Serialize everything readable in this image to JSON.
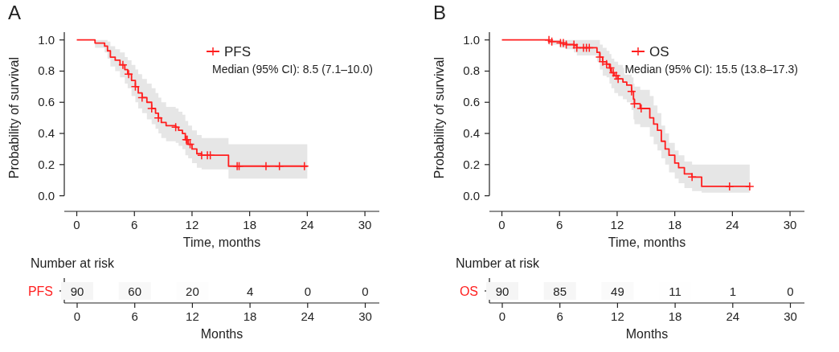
{
  "chart_data": [
    {
      "type": "step",
      "title": "A",
      "xlabel": "Time, months",
      "ylabel": "Probability of survival",
      "xlim": [
        -1.3,
        31.5
      ],
      "ylim": [
        -0.1,
        1.05
      ],
      "xticks": [
        0,
        6,
        12,
        18,
        24,
        30
      ],
      "yticks": [
        {
          "value": 0,
          "label": "0.0"
        },
        {
          "value": 0.2,
          "label": "0.2"
        },
        {
          "value": 0.4,
          "label": "0.4"
        },
        {
          "value": 0.6,
          "label": "0.6"
        },
        {
          "value": 0.8,
          "label": "0.8"
        },
        {
          "value": 1,
          "label": "1.0"
        }
      ],
      "legend": "top right",
      "annotations": [
        "Median (95% CI): 8.5 (7.1–10.0)"
      ],
      "series": [
        {
          "name": "PFS",
          "type": "step",
          "color": "#ff1f1f",
          "x": [
            0,
            1.9,
            2.9,
            3.2,
            3.5,
            4.0,
            4.5,
            5.0,
            5.3,
            5.7,
            6.1,
            6.4,
            6.8,
            7.3,
            7.8,
            8.2,
            8.5,
            8.8,
            9.3,
            10.3,
            10.6,
            11.0,
            11.3,
            11.6,
            12.0,
            12.5,
            13.0,
            15.8,
            24
          ],
          "values": [
            1,
            0.98,
            0.96,
            0.93,
            0.89,
            0.87,
            0.84,
            0.81,
            0.78,
            0.74,
            0.7,
            0.66,
            0.63,
            0.6,
            0.56,
            0.53,
            0.5,
            0.47,
            0.45,
            0.44,
            0.42,
            0.4,
            0.36,
            0.33,
            0.3,
            0.27,
            0.26,
            0.19,
            0.19
          ],
          "upper": [
            1,
            1,
            1,
            0.99,
            0.96,
            0.94,
            0.92,
            0.89,
            0.87,
            0.84,
            0.81,
            0.78,
            0.75,
            0.72,
            0.69,
            0.66,
            0.63,
            0.6,
            0.57,
            0.56,
            0.54,
            0.52,
            0.48,
            0.45,
            0.42,
            0.39,
            0.37,
            0.33,
            0.33
          ],
          "lower": [
            1,
            0.95,
            0.92,
            0.88,
            0.83,
            0.8,
            0.76,
            0.72,
            0.69,
            0.64,
            0.6,
            0.56,
            0.53,
            0.49,
            0.46,
            0.43,
            0.4,
            0.37,
            0.35,
            0.34,
            0.32,
            0.3,
            0.26,
            0.24,
            0.21,
            0.18,
            0.17,
            0.11,
            0.11
          ]
        },
        {
          "type": "scatter",
          "marker": "cross",
          "color": "#ff1f1f",
          "x": [
            4.8,
            5.4,
            6.1,
            6.8,
            7.8,
            8.5,
            10.3,
            11.4,
            11.5,
            11.8,
            13.0,
            13.6,
            13.9,
            16.7,
            16.9,
            19.7,
            21.1,
            23.7
          ],
          "values": [
            0.84,
            0.78,
            0.7,
            0.63,
            0.56,
            0.5,
            0.44,
            0.36,
            0.36,
            0.33,
            0.26,
            0.26,
            0.26,
            0.19,
            0.19,
            0.19,
            0.19,
            0.19
          ]
        }
      ]
    },
    {
      "type": "heatmap",
      "title": "Number at risk",
      "xlabel": "Months",
      "categories": [
        "0",
        "6",
        "12",
        "18",
        "24",
        "30"
      ],
      "y_categories": [
        "PFS"
      ],
      "cells": [
        [
          90,
          60,
          20,
          4,
          0,
          0
        ]
      ],
      "cell_labels": [
        [
          "90",
          "60",
          "20",
          "4",
          "0",
          "0"
        ]
      ]
    },
    {
      "type": "step",
      "title": "B",
      "xlabel": "Time, months",
      "ylabel": "Probability of survival",
      "xlim": [
        -1.3,
        31.5
      ],
      "ylim": [
        -0.1,
        1.05
      ],
      "xticks": [
        0,
        6,
        12,
        18,
        24,
        30
      ],
      "yticks": [
        {
          "value": 0,
          "label": "0.0"
        },
        {
          "value": 0.2,
          "label": "0.2"
        },
        {
          "value": 0.4,
          "label": "0.4"
        },
        {
          "value": 0.6,
          "label": "0.6"
        },
        {
          "value": 0.8,
          "label": "0.8"
        },
        {
          "value": 1,
          "label": "1.0"
        }
      ],
      "legend": "top right",
      "annotations": [
        "Median (95% CI): 15.5 (13.8–17.3)"
      ],
      "series": [
        {
          "name": "OS",
          "type": "step",
          "color": "#ff1f1f",
          "x": [
            0,
            4.9,
            6.1,
            6.7,
            7.5,
            7.8,
            9.9,
            10.2,
            10.5,
            10.9,
            11.2,
            11.4,
            11.7,
            12.1,
            12.6,
            13.0,
            13.5,
            13.7,
            13.8,
            14.4,
            15.4,
            15.8,
            16.2,
            16.6,
            17.0,
            17.4,
            18.0,
            18.4,
            19.0,
            19.8,
            20.8,
            25.8
          ],
          "values": [
            1,
            0.99,
            0.98,
            0.97,
            0.965,
            0.95,
            0.92,
            0.89,
            0.86,
            0.845,
            0.82,
            0.79,
            0.77,
            0.75,
            0.73,
            0.71,
            0.67,
            0.62,
            0.59,
            0.56,
            0.5,
            0.46,
            0.42,
            0.35,
            0.3,
            0.26,
            0.21,
            0.18,
            0.14,
            0.12,
            0.06,
            0.06
          ],
          "upper": [
            1,
            1,
            1,
            1,
            1,
            1,
            1,
            0.97,
            0.95,
            0.93,
            0.91,
            0.88,
            0.86,
            0.84,
            0.82,
            0.8,
            0.76,
            0.72,
            0.7,
            0.68,
            0.64,
            0.58,
            0.53,
            0.45,
            0.4,
            0.34,
            0.29,
            0.26,
            0.22,
            0.2,
            0.2,
            0.2
          ],
          "lower": [
            1,
            0.97,
            0.95,
            0.94,
            0.92,
            0.9,
            0.86,
            0.81,
            0.77,
            0.76,
            0.72,
            0.69,
            0.66,
            0.64,
            0.62,
            0.6,
            0.55,
            0.49,
            0.46,
            0.44,
            0.38,
            0.33,
            0.29,
            0.24,
            0.2,
            0.15,
            0.11,
            0.08,
            0.05,
            0.03,
            0.02,
            0.02
          ]
        },
        {
          "type": "scatter",
          "marker": "cross",
          "color": "#ff1f1f",
          "x": [
            4.9,
            5.2,
            6.1,
            6.4,
            6.7,
            7.5,
            7.8,
            8.5,
            8.8,
            9.1,
            10.2,
            10.5,
            10.9,
            11.3,
            11.6,
            11.9,
            12.1,
            13.5,
            13.8,
            14.5,
            19.8,
            23.7,
            25.8
          ],
          "values": [
            1,
            0.99,
            0.98,
            0.98,
            0.97,
            0.97,
            0.95,
            0.95,
            0.95,
            0.95,
            0.89,
            0.86,
            0.845,
            0.82,
            0.79,
            0.77,
            0.75,
            0.67,
            0.59,
            0.56,
            0.12,
            0.06,
            0.06
          ]
        }
      ]
    },
    {
      "type": "heatmap",
      "title": "Number at risk",
      "xlabel": "Months",
      "categories": [
        "0",
        "6",
        "12",
        "18",
        "24",
        "30"
      ],
      "y_categories": [
        "OS"
      ],
      "cells": [
        [
          90,
          85,
          49,
          11,
          1,
          0
        ]
      ],
      "cell_labels": [
        [
          "90",
          "85",
          "49",
          "11",
          "1",
          "0"
        ]
      ]
    }
  ]
}
